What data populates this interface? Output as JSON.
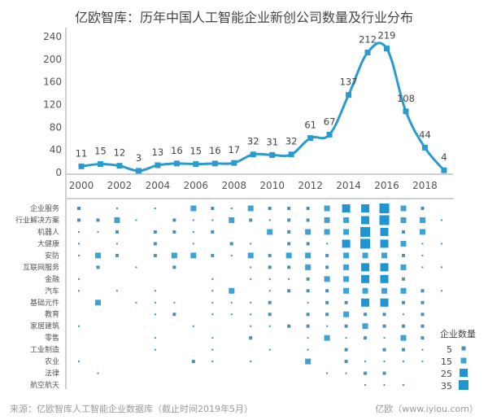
{
  "chart_data": [
    {
      "type": "line",
      "title": "亿欧智库：历年中国人工智能企业新创公司数量及行业分布",
      "x": [
        2000,
        2001,
        2002,
        2003,
        2004,
        2005,
        2006,
        2007,
        2008,
        2009,
        2010,
        2011,
        2012,
        2013,
        2014,
        2015,
        2016,
        2017,
        2018,
        2019
      ],
      "values": [
        11,
        15,
        12,
        3,
        13,
        16,
        15,
        16,
        17,
        32,
        31,
        32,
        61,
        67,
        137,
        212,
        219,
        108,
        44,
        4
      ],
      "ylim": [
        0,
        240
      ],
      "yticks": [
        "0",
        "40",
        "80",
        "120",
        "160",
        "200",
        "240"
      ],
      "xticks": [
        "2000",
        "2002",
        "2004",
        "2006",
        "2008",
        "2010",
        "2012",
        "2014",
        "2016",
        "2018"
      ],
      "color": "#2a9ad0"
    },
    {
      "type": "heatmap",
      "legend_title": "企业数量",
      "legend_values": [
        "5",
        "15",
        "25",
        "35"
      ],
      "rows": [
        "企业服务",
        "行业解决方案",
        "机器人",
        "大健康",
        "安防",
        "互联网服务",
        "金融",
        "汽车",
        "基础元件",
        "教育",
        "家居建筑",
        "零售",
        "工业制造",
        "农业",
        "法律",
        "航空航天"
      ],
      "size_levels_note": "0=none,1..5 increasing count",
      "matrix": [
        [
          2,
          0,
          1,
          0,
          1,
          0,
          3,
          2,
          1,
          3,
          2,
          2,
          2,
          3,
          4,
          4,
          5,
          3,
          2,
          0
        ],
        [
          2,
          2,
          3,
          1,
          0,
          2,
          1,
          1,
          3,
          2,
          1,
          2,
          2,
          3,
          3,
          4,
          5,
          3,
          3,
          1
        ],
        [
          1,
          1,
          2,
          0,
          2,
          2,
          1,
          2,
          0,
          0,
          3,
          2,
          3,
          3,
          3,
          5,
          4,
          2,
          3,
          0
        ],
        [
          1,
          0,
          1,
          0,
          2,
          0,
          1,
          0,
          2,
          1,
          0,
          2,
          2,
          1,
          4,
          5,
          4,
          3,
          1,
          1
        ],
        [
          1,
          3,
          2,
          0,
          2,
          3,
          3,
          2,
          1,
          3,
          2,
          3,
          3,
          2,
          3,
          3,
          3,
          2,
          1,
          0
        ],
        [
          0,
          2,
          0,
          1,
          0,
          2,
          0,
          0,
          0,
          1,
          2,
          2,
          3,
          2,
          3,
          4,
          4,
          3,
          1,
          1
        ],
        [
          1,
          0,
          0,
          0,
          0,
          0,
          0,
          1,
          0,
          1,
          1,
          1,
          2,
          3,
          3,
          4,
          4,
          2,
          0,
          0
        ],
        [
          1,
          0,
          1,
          0,
          1,
          0,
          0,
          1,
          3,
          0,
          1,
          2,
          2,
          2,
          3,
          3,
          3,
          3,
          2,
          1
        ],
        [
          0,
          3,
          0,
          1,
          1,
          1,
          0,
          1,
          1,
          1,
          2,
          0,
          1,
          2,
          2,
          4,
          4,
          2,
          2,
          0
        ],
        [
          0,
          0,
          0,
          0,
          1,
          2,
          0,
          1,
          1,
          1,
          2,
          0,
          2,
          2,
          3,
          2,
          2,
          1,
          2,
          0
        ],
        [
          1,
          0,
          0,
          0,
          0,
          0,
          1,
          0,
          0,
          1,
          1,
          2,
          2,
          1,
          2,
          3,
          2,
          2,
          2,
          0
        ],
        [
          0,
          0,
          0,
          0,
          1,
          0,
          0,
          1,
          0,
          2,
          0,
          0,
          1,
          3,
          1,
          2,
          1,
          3,
          2,
          0
        ],
        [
          0,
          0,
          0,
          0,
          1,
          0,
          0,
          1,
          0,
          0,
          1,
          0,
          1,
          0,
          2,
          0,
          2,
          2,
          1,
          0
        ],
        [
          1,
          0,
          0,
          0,
          0,
          0,
          2,
          1,
          0,
          1,
          0,
          0,
          3,
          0,
          2,
          1,
          1,
          1,
          1,
          0
        ],
        [
          0,
          1,
          0,
          0,
          0,
          0,
          0,
          0,
          0,
          0,
          0,
          0,
          0,
          1,
          1,
          2,
          2,
          0,
          0,
          0
        ],
        [
          0,
          0,
          0,
          0,
          0,
          0,
          0,
          0,
          0,
          0,
          0,
          0,
          0,
          0,
          0,
          1,
          1,
          1,
          0,
          0
        ]
      ]
    }
  ],
  "footer": {
    "source": "来源：亿欧智库人工智能企业数据库（截止时间2019年5月）",
    "brand": "亿欧（www.iyiou.com）"
  }
}
